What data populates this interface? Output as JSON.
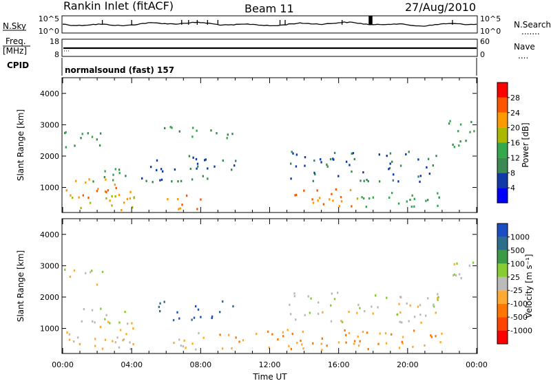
{
  "header": {
    "station": "Rankin Inlet (fitACF)",
    "beam": "Beam 11",
    "date": "27/Aug/2010"
  },
  "nsky_panel": {
    "left_label": "N.Sky",
    "left_ticks": [
      "10^5",
      "10^0"
    ],
    "right_ticks": [
      "10^5",
      "10^0"
    ],
    "right_label": "N.Search",
    "right_style": "......."
  },
  "freq_panel": {
    "left_label_1": "Freq.",
    "left_label_2": "[MHz]",
    "left_ticks": [
      "18",
      "8"
    ],
    "right_ticks": [
      "60",
      "0"
    ],
    "right_label": "Nave",
    "right_style": "...."
  },
  "cpid_panel": {
    "label": "CPID",
    "mode": "normalsound (fast) 157"
  },
  "time_axis": {
    "label": "Time UT",
    "ticks": [
      "00:00",
      "04:00",
      "08:00",
      "12:00",
      "16:00",
      "20:00",
      "00:00"
    ]
  },
  "colors": {
    "power_scale": [
      "#0000ff",
      "#0f3aa8",
      "#3a8a52",
      "#33a84c",
      "#aab800",
      "#ff9900",
      "#ff5500",
      "#ff0000"
    ],
    "velocity_scale": [
      "#1a4fc4",
      "#2d6e8c",
      "#3c9a45",
      "#88cc33",
      "#bbbbbb",
      "#ffaa33",
      "#ff7700",
      "#ff4400",
      "#ff0000"
    ]
  },
  "chart_data": [
    {
      "type": "heatmap",
      "name": "power-panel",
      "ylabel": "Slant Range [km]",
      "ylim": [
        200,
        4500
      ],
      "y_ticks": [
        "1000",
        "2000",
        "3000",
        "4000"
      ],
      "xlim_hours": [
        0,
        24
      ],
      "colorbar": {
        "label": "Power [dB]",
        "tick_labels": [
          "4",
          "8",
          "12",
          "16",
          "20",
          "24",
          "28"
        ],
        "range": [
          0,
          32
        ]
      },
      "regions": [
        {
          "t": [
            0.0,
            4.2
          ],
          "r": [
            700,
            1300
          ],
          "level": 24
        },
        {
          "t": [
            0.0,
            4.5
          ],
          "r": [
            300,
            800
          ],
          "level": 20
        },
        {
          "t": [
            1.0,
            3.8
          ],
          "r": [
            1200,
            1700
          ],
          "level": 12
        },
        {
          "t": [
            0.0,
            2.5
          ],
          "r": [
            2300,
            3000
          ],
          "level": 12
        },
        {
          "t": [
            4.5,
            8.5
          ],
          "r": [
            1200,
            2100
          ],
          "level": 8
        },
        {
          "t": [
            6.0,
            8.0
          ],
          "r": [
            300,
            900
          ],
          "level": 24
        },
        {
          "t": [
            5.5,
            8.0
          ],
          "r": [
            2600,
            3000
          ],
          "level": 14
        },
        {
          "t": [
            8.0,
            10.0
          ],
          "r": [
            2600,
            3000
          ],
          "level": 10
        },
        {
          "t": [
            8.5,
            10.0
          ],
          "r": [
            1300,
            1900
          ],
          "level": 8
        },
        {
          "t": [
            13.0,
            17.0
          ],
          "r": [
            400,
            1000
          ],
          "level": 24
        },
        {
          "t": [
            13.0,
            22.0
          ],
          "r": [
            1200,
            2200
          ],
          "level": 8
        },
        {
          "t": [
            17.0,
            22.0
          ],
          "r": [
            400,
            900
          ],
          "level": 14
        },
        {
          "t": [
            22.0,
            24.0
          ],
          "r": [
            2300,
            3200
          ],
          "level": 12
        }
      ]
    },
    {
      "type": "heatmap",
      "name": "velocity-panel",
      "ylabel": "Slant Range [km]",
      "ylim": [
        200,
        4500
      ],
      "y_ticks": [
        "1000",
        "2000",
        "3000",
        "4000"
      ],
      "xlim_hours": [
        0,
        24
      ],
      "colorbar": {
        "label": "Velocity [m s⁻¹]",
        "tick_labels": [
          "1000",
          "500",
          "100",
          "25",
          "-25",
          "-100",
          "-500",
          "-1000"
        ],
        "range": [
          1000,
          -1000
        ]
      },
      "regions": [
        {
          "t": [
            0.0,
            4.2
          ],
          "r": [
            300,
            1300
          ],
          "level": -100
        },
        {
          "t": [
            1.0,
            3.8
          ],
          "r": [
            1000,
            1700
          ],
          "level": 100
        },
        {
          "t": [
            0.0,
            2.5
          ],
          "r": [
            2300,
            3000
          ],
          "level": 0
        },
        {
          "t": [
            5.5,
            8.0
          ],
          "r": [
            1200,
            2000
          ],
          "level": 800
        },
        {
          "t": [
            6.0,
            8.5
          ],
          "r": [
            300,
            900
          ],
          "level": -100
        },
        {
          "t": [
            8.5,
            10.0
          ],
          "r": [
            1300,
            1900
          ],
          "level": 800
        },
        {
          "t": [
            9.0,
            22.0
          ],
          "r": [
            300,
            1000
          ],
          "level": -300
        },
        {
          "t": [
            13.0,
            22.0
          ],
          "r": [
            1200,
            2200
          ],
          "level": 0
        },
        {
          "t": [
            22.0,
            24.0
          ],
          "r": [
            2300,
            3200
          ],
          "level": 0
        }
      ]
    }
  ]
}
